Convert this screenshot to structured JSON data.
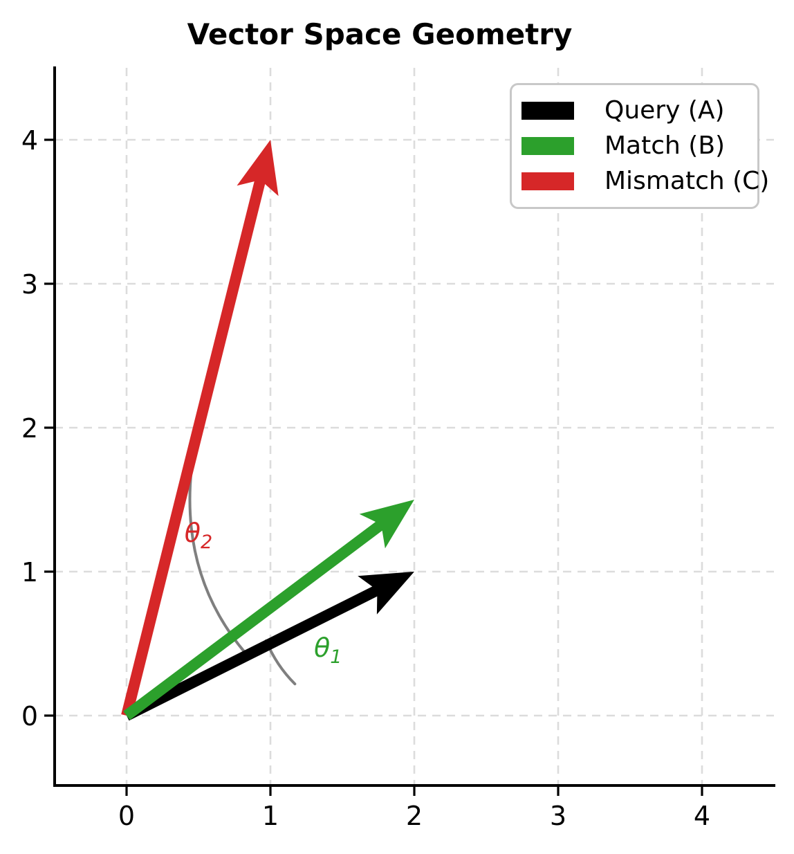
{
  "chart_data": {
    "type": "vector-plot",
    "title": "Vector Space Geometry",
    "xlabel": "",
    "ylabel": "",
    "xlim": [
      -0.5,
      4.5
    ],
    "ylim": [
      -0.5,
      4.5
    ],
    "xticks": [
      "0",
      "1",
      "2",
      "3",
      "4"
    ],
    "yticks": [
      "0",
      "1",
      "2",
      "3",
      "4"
    ],
    "grid": {
      "show": true,
      "style": "dashed",
      "color": "#dcdcdc"
    },
    "vectors": [
      {
        "name": "Query (A)",
        "from": [
          0,
          0
        ],
        "to": [
          2,
          1
        ],
        "color": "#000000"
      },
      {
        "name": "Mismatch (C)",
        "from": [
          0,
          0
        ],
        "to": [
          1,
          4
        ],
        "color": "#d62728"
      },
      {
        "name": "Match (B)",
        "from": [
          0,
          0
        ],
        "to": [
          2,
          1.5
        ],
        "color": "#2ca02c"
      }
    ],
    "angle_annotations": [
      {
        "text": "θ",
        "subscript": "1",
        "color": "#2ca02c",
        "label_at": [
          1.4,
          0.47
        ],
        "arc": {
          "from": [
            0.97,
            0.52
          ],
          "ctrl": [
            1.04,
            0.35
          ],
          "to": [
            1.17,
            0.22
          ],
          "color": "#7f7f7f"
        }
      },
      {
        "text": "θ",
        "subscript": "2",
        "color": "#d62728",
        "label_at": [
          0.5,
          1.27
        ],
        "arc": {
          "from": [
            0.49,
            1.96
          ],
          "ctrl": [
            0.3,
            1.05
          ],
          "to": [
            0.83,
            0.43
          ],
          "color": "#7f7f7f"
        }
      }
    ],
    "legend": {
      "position": "upper right",
      "items": [
        {
          "label": "Query (A)",
          "color": "#000000"
        },
        {
          "label": "Match (B)",
          "color": "#2ca02c"
        },
        {
          "label": "Mismatch (C)",
          "color": "#d62728"
        }
      ]
    }
  }
}
